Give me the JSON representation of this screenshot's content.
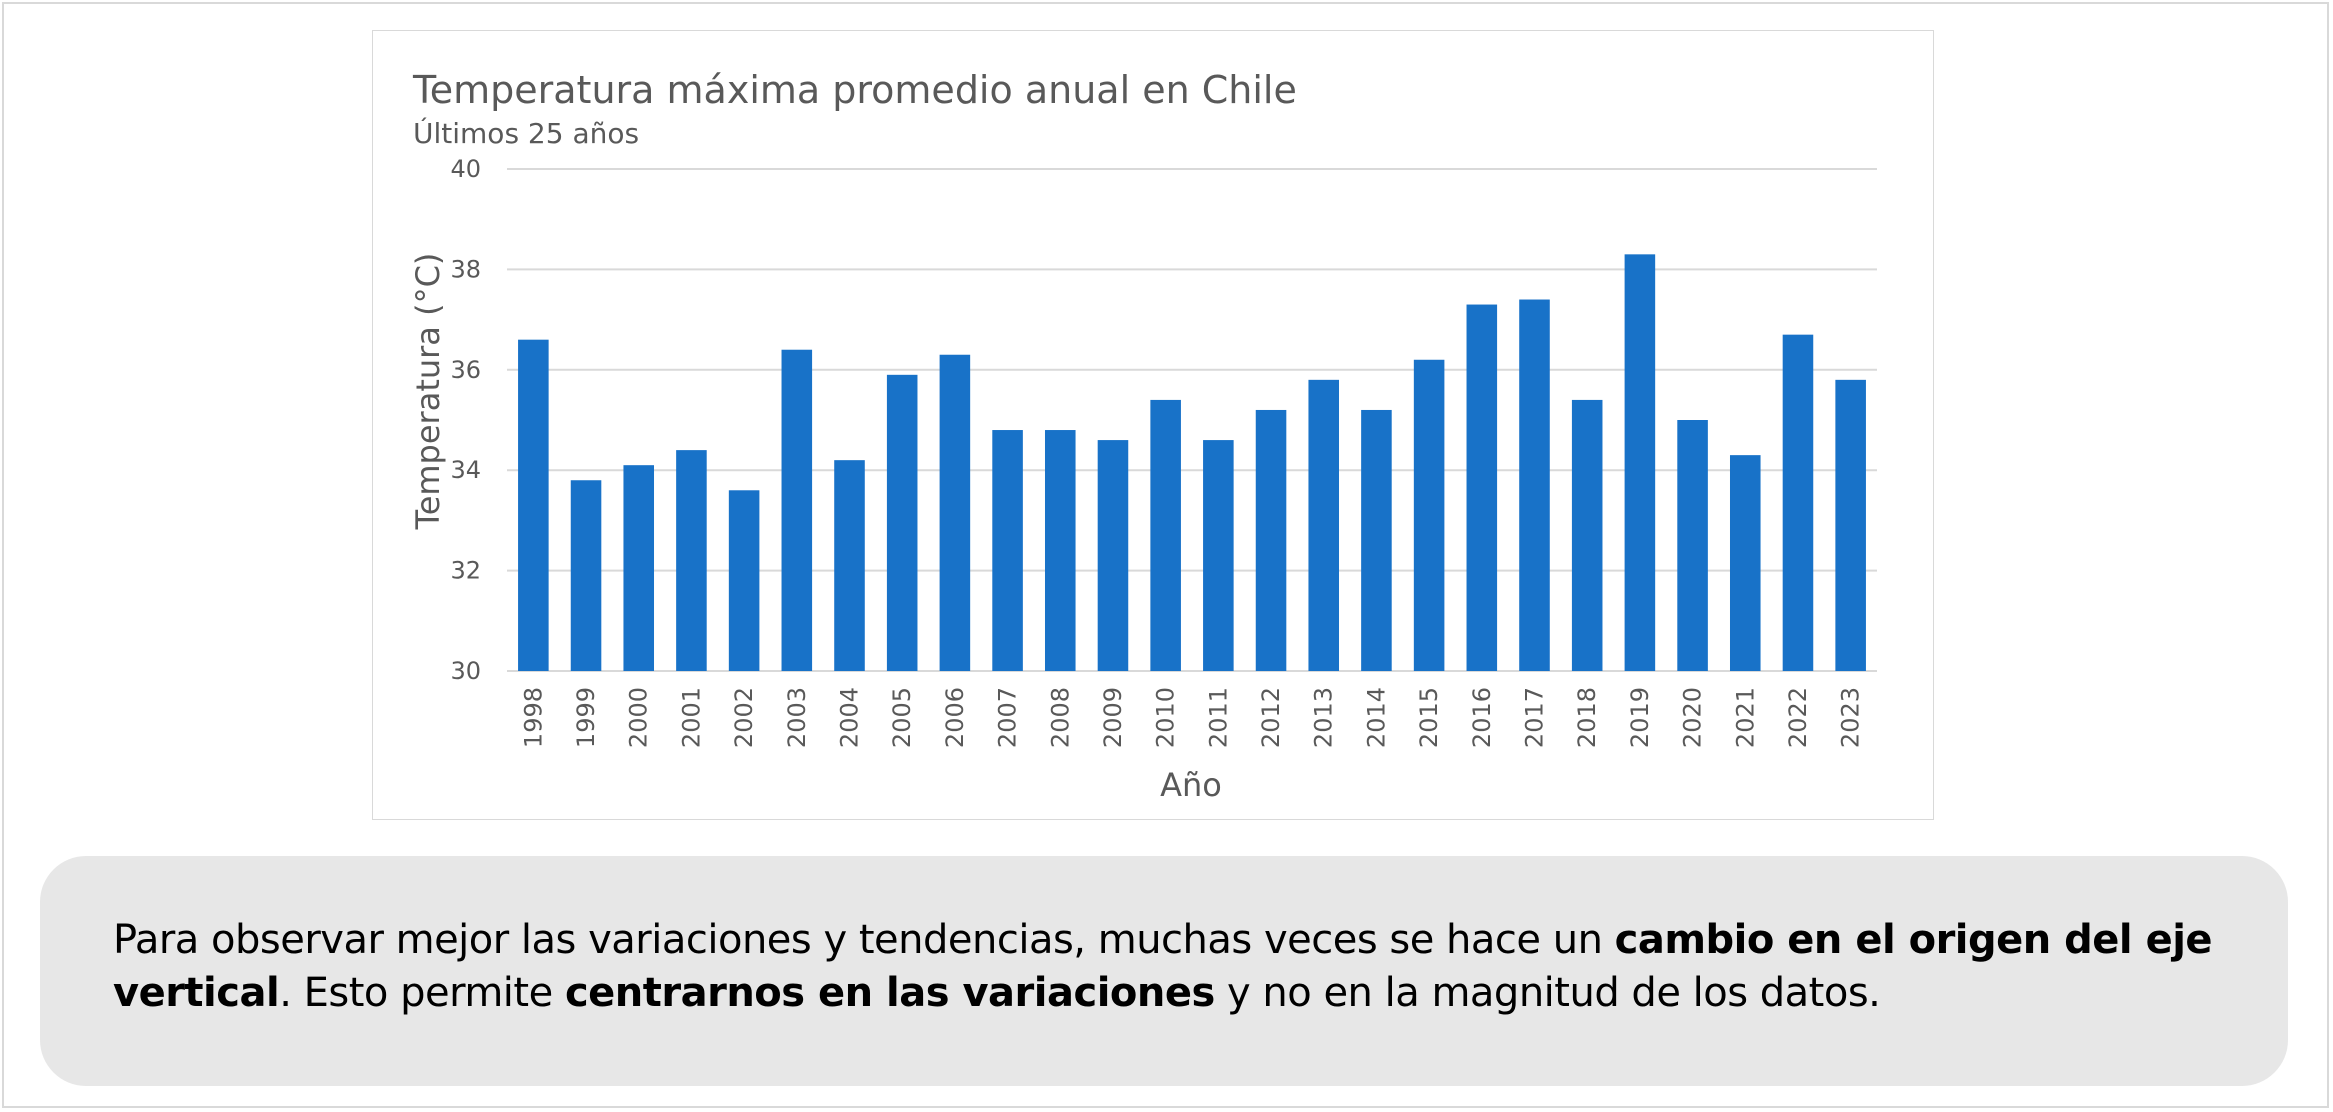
{
  "chart_data": {
    "type": "bar",
    "title": "Temperatura máxima promedio anual en Chile",
    "subtitle": "Últimos 25 años",
    "xlabel": "Año",
    "ylabel": "Temperatura (°C)",
    "ylim": [
      30,
      40
    ],
    "yticks": [
      30,
      32,
      34,
      36,
      38,
      40
    ],
    "grid": true,
    "categories": [
      "1998",
      "1999",
      "2000",
      "2001",
      "2002",
      "2003",
      "2004",
      "2005",
      "2006",
      "2007",
      "2008",
      "2009",
      "2010",
      "2011",
      "2012",
      "2013",
      "2014",
      "2015",
      "2016",
      "2017",
      "2018",
      "2019",
      "2020",
      "2021",
      "2022",
      "2023"
    ],
    "values": [
      36.6,
      33.8,
      34.1,
      34.4,
      33.6,
      36.4,
      34.2,
      35.9,
      36.3,
      34.8,
      34.8,
      34.6,
      35.4,
      34.6,
      35.2,
      35.8,
      35.2,
      36.2,
      37.3,
      37.4,
      35.4,
      38.3,
      35.0,
      34.3,
      36.7,
      35.8
    ],
    "bar_color": "#1872c8"
  },
  "note": {
    "part1": "Para observar mejor las variaciones y tendencias, muchas veces se hace un ",
    "bold1": "cambio en el origen del eje vertical",
    "part2": ". Esto permite ",
    "bold2": "centrarnos en las variaciones",
    "part3": " y no en la magnitud de los datos."
  }
}
